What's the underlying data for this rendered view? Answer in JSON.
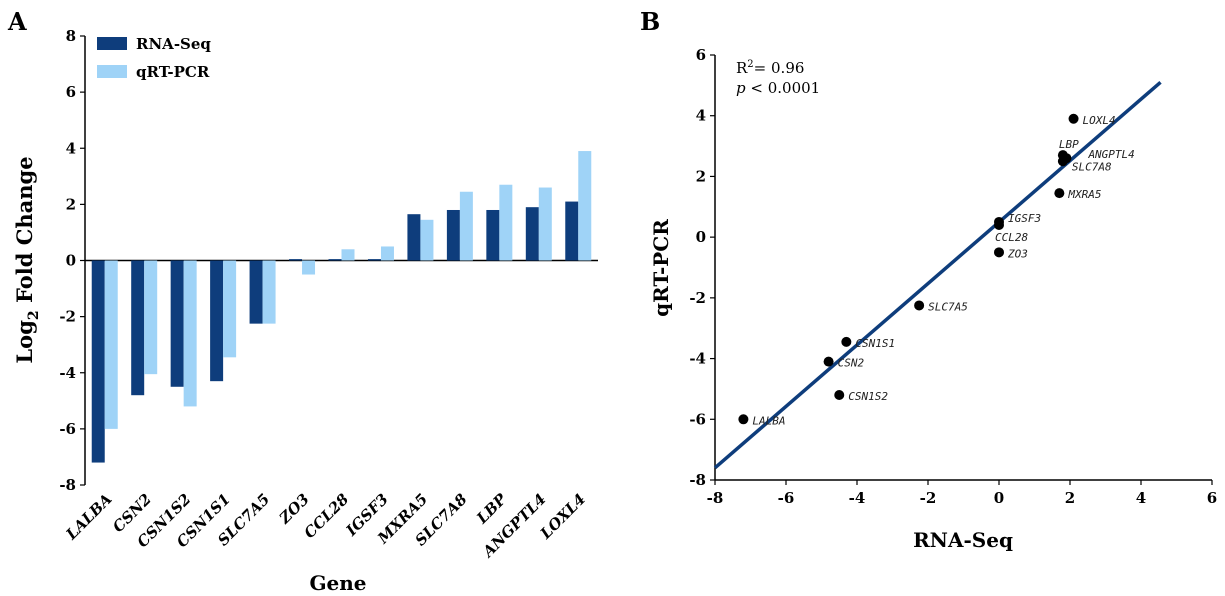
{
  "panels": {
    "a_letter": "A",
    "b_letter": "B"
  },
  "chart_data": [
    {
      "type": "bar",
      "panel": "A",
      "title": "",
      "xlabel": "Gene",
      "ylabel_main": "Log",
      "ylabel_sub": "2",
      "ylabel_tail": " Fold Change",
      "ylim": [
        -8,
        8
      ],
      "yticks": [
        -8,
        -6,
        -4,
        -2,
        0,
        2,
        4,
        6,
        8
      ],
      "grid": false,
      "legend_position": "top-left",
      "categories": [
        "LALBA",
        "CSN2",
        "CSN1S2",
        "CSN1S1",
        "SLC7A5",
        "ZO3",
        "CCL28",
        "IGSF3",
        "MXRA5",
        "SLC7A8",
        "LBP",
        "ANGPTL4",
        "LOXL4"
      ],
      "series": [
        {
          "name": "RNA-Seq",
          "color": "#0e3d7c",
          "values": [
            -7.2,
            -4.8,
            -4.5,
            -4.3,
            -2.25,
            0.05,
            0.05,
            0.05,
            1.65,
            1.8,
            1.8,
            1.9,
            2.1
          ]
        },
        {
          "name": "qRT-PCR",
          "color": "#9fd3f7",
          "values": [
            -6.0,
            -4.05,
            -5.2,
            -3.45,
            -2.25,
            -0.5,
            0.4,
            0.5,
            1.45,
            2.45,
            2.7,
            2.6,
            3.9
          ]
        }
      ]
    },
    {
      "type": "scatter",
      "panel": "B",
      "title": "",
      "xlabel": "RNA-Seq",
      "ylabel": "qRT-PCR",
      "xlim": [
        -8,
        6
      ],
      "ylim": [
        -8,
        6
      ],
      "xticks": [
        -8,
        -6,
        -4,
        -2,
        0,
        2,
        4,
        6
      ],
      "yticks": [
        -8,
        -6,
        -4,
        -2,
        0,
        2,
        4,
        6
      ],
      "grid": false,
      "annotation_r2_base": "R",
      "annotation_r2_sup": "2",
      "annotation_r2_tail": "= 0.96",
      "annotation_p_italic": "p",
      "annotation_p_tail": " < 0.0001",
      "fit_line": {
        "x": [
          -8,
          4.55
        ],
        "y": [
          -7.6,
          5.1
        ],
        "color": "#0e3d7c"
      },
      "point_color": "#000000",
      "points": [
        {
          "label": "LALBA",
          "x": -7.2,
          "y": -6.0
        },
        {
          "label": "CSN2",
          "x": -4.8,
          "y": -4.1
        },
        {
          "label": "CSN1S2",
          "x": -4.5,
          "y": -5.2
        },
        {
          "label": "CSN1S1",
          "x": -4.3,
          "y": -3.45
        },
        {
          "label": "SLC7A5",
          "x": -2.25,
          "y": -2.25
        },
        {
          "label": "ZO3",
          "x": 0.0,
          "y": -0.5
        },
        {
          "label": "CCL28",
          "x": 0.0,
          "y": 0.4
        },
        {
          "label": "IGSF3",
          "x": 0.0,
          "y": 0.5
        },
        {
          "label": "MXRA5",
          "x": 1.7,
          "y": 1.45
        },
        {
          "label": "SLC7A8",
          "x": 1.8,
          "y": 2.5
        },
        {
          "label": "LBP",
          "x": 1.8,
          "y": 2.7
        },
        {
          "label": "ANGPTL4",
          "x": 1.9,
          "y": 2.6
        },
        {
          "label": "LOXL4",
          "x": 2.1,
          "y": 3.9
        }
      ]
    }
  ]
}
